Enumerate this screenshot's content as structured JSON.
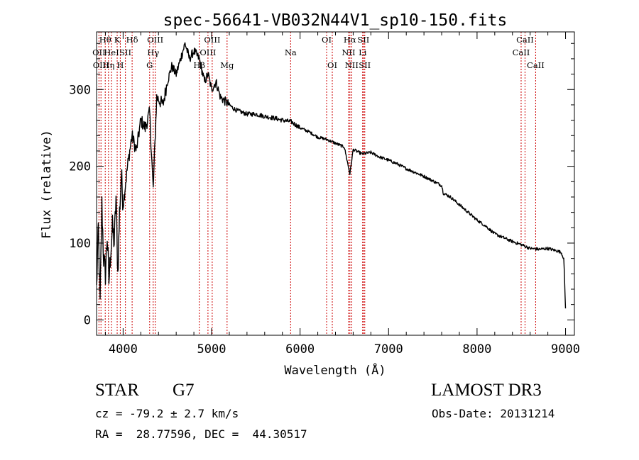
{
  "chart_data": {
    "type": "line",
    "title": "spec-56641-VB032N44V1_sp10-150.fits",
    "xlabel": "Wavelength (Å)",
    "ylabel": "Flux (relative)",
    "xlim": [
      3700,
      9100
    ],
    "ylim": [
      -20,
      375
    ],
    "x_ticks": [
      4000,
      5000,
      6000,
      7000,
      8000,
      9000
    ],
    "x_tick_labels": [
      "4000",
      "5000",
      "6000",
      "7000",
      "8000",
      "9000"
    ],
    "y_ticks": [
      0,
      100,
      200,
      300
    ],
    "y_tick_labels": [
      "0",
      "100",
      "200",
      "300"
    ],
    "series": [
      {
        "name": "spectrum",
        "color": "#000000",
        "points": [
          [
            3700,
            40
          ],
          [
            3720,
            120
          ],
          [
            3740,
            20
          ],
          [
            3760,
            150
          ],
          [
            3780,
            80
          ],
          [
            3800,
            60
          ],
          [
            3820,
            110
          ],
          [
            3840,
            50
          ],
          [
            3860,
            90
          ],
          [
            3880,
            120
          ],
          [
            3900,
            100
          ],
          [
            3920,
            160
          ],
          [
            3940,
            60
          ],
          [
            3960,
            140
          ],
          [
            3980,
            190
          ],
          [
            4000,
            150
          ],
          [
            4050,
            200
          ],
          [
            4100,
            240
          ],
          [
            4150,
            220
          ],
          [
            4200,
            260
          ],
          [
            4250,
            250
          ],
          [
            4300,
            270
          ],
          [
            4340,
            170
          ],
          [
            4380,
            290
          ],
          [
            4450,
            280
          ],
          [
            4500,
            310
          ],
          [
            4550,
            330
          ],
          [
            4600,
            320
          ],
          [
            4650,
            340
          ],
          [
            4700,
            360
          ],
          [
            4750,
            340
          ],
          [
            4800,
            350
          ],
          [
            4861,
            340
          ],
          [
            4920,
            310
          ],
          [
            4960,
            320
          ],
          [
            5000,
            300
          ],
          [
            5050,
            310
          ],
          [
            5100,
            290
          ],
          [
            5150,
            285
          ],
          [
            5200,
            280
          ],
          [
            5250,
            275
          ],
          [
            5300,
            272
          ],
          [
            5400,
            268
          ],
          [
            5500,
            268
          ],
          [
            5600,
            265
          ],
          [
            5700,
            263
          ],
          [
            5800,
            260
          ],
          [
            5900,
            258
          ],
          [
            6000,
            250
          ],
          [
            6100,
            245
          ],
          [
            6200,
            238
          ],
          [
            6300,
            235
          ],
          [
            6400,
            230
          ],
          [
            6500,
            225
          ],
          [
            6563,
            190
          ],
          [
            6600,
            222
          ],
          [
            6700,
            216
          ],
          [
            6800,
            218
          ],
          [
            6900,
            212
          ],
          [
            7000,
            208
          ],
          [
            7100,
            203
          ],
          [
            7200,
            197
          ],
          [
            7300,
            192
          ],
          [
            7400,
            187
          ],
          [
            7500,
            181
          ],
          [
            7600,
            175
          ],
          [
            7620,
            165
          ],
          [
            7700,
            160
          ],
          [
            7800,
            150
          ],
          [
            7900,
            140
          ],
          [
            8000,
            130
          ],
          [
            8100,
            122
          ],
          [
            8200,
            112
          ],
          [
            8300,
            107
          ],
          [
            8400,
            102
          ],
          [
            8500,
            98
          ],
          [
            8600,
            93
          ],
          [
            8700,
            92
          ],
          [
            8800,
            93
          ],
          [
            8900,
            90
          ],
          [
            8950,
            88
          ],
          [
            8980,
            80
          ],
          [
            9000,
            15
          ]
        ]
      }
    ],
    "lines": [
      {
        "wl": 3727,
        "label": "OII",
        "row": 2
      },
      {
        "wl": 3750,
        "label": "OIII",
        "row": 3
      },
      {
        "wl": 3798,
        "label": "Hθ",
        "row": 1
      },
      {
        "wl": 3835,
        "label": "Hη",
        "row": 3
      },
      {
        "wl": 3869,
        "label": "HeI",
        "row": 2
      },
      {
        "wl": 3933,
        "label": "K",
        "row": 1
      },
      {
        "wl": 3968,
        "label": "H",
        "row": 3
      },
      {
        "wl": 4026,
        "label": "SII",
        "row": 2
      },
      {
        "wl": 4102,
        "label": "Hδ",
        "row": 1
      },
      {
        "wl": 4300,
        "label": "G",
        "row": 3
      },
      {
        "wl": 4340,
        "label": "Hγ",
        "row": 2
      },
      {
        "wl": 4363,
        "label": "OIII",
        "row": 1
      },
      {
        "wl": 4861,
        "label": "Hβ",
        "row": 3
      },
      {
        "wl": 4959,
        "label": "OIII",
        "row": 2
      },
      {
        "wl": 5007,
        "label": "OIII",
        "row": 1
      },
      {
        "wl": 5175,
        "label": "Mg",
        "row": 3
      },
      {
        "wl": 5893,
        "label": "Na",
        "row": 2
      },
      {
        "wl": 6300,
        "label": "OI",
        "row": 1
      },
      {
        "wl": 6364,
        "label": "OI",
        "row": 3
      },
      {
        "wl": 6548,
        "label": "NII",
        "row": 2
      },
      {
        "wl": 6563,
        "label": "Hα",
        "row": 1
      },
      {
        "wl": 6583,
        "label": "NII",
        "row": 3
      },
      {
        "wl": 6707,
        "label": "Li",
        "row": 2
      },
      {
        "wl": 6716,
        "label": "SII",
        "row": 1
      },
      {
        "wl": 6731,
        "label": "SII",
        "row": 3
      },
      {
        "wl": 8498,
        "label": "CaII",
        "row": 2
      },
      {
        "wl": 8542,
        "label": "CaII",
        "row": 1
      },
      {
        "wl": 8662,
        "label": "CaII",
        "row": 3
      }
    ],
    "line_color": "#cc0000"
  },
  "info": {
    "class_label": "STAR",
    "subclass": "G7",
    "survey": "LAMOST DR3",
    "redshift": "cz = -79.2 ± 2.7 km/s",
    "obs_date": "Obs-Date: 20131214",
    "coords": "RA =  28.77596, DEC =  44.30517"
  }
}
